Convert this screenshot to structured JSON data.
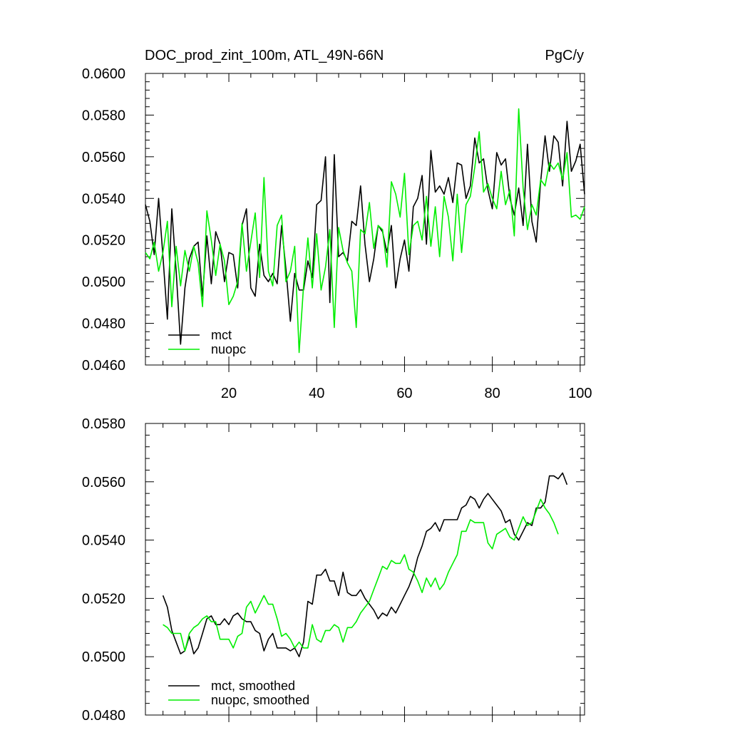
{
  "chart_data": [
    {
      "type": "line",
      "title": "DOC_prod_zint_100m, ATL_49N-66N",
      "units": "PgC/y",
      "ylim": [
        0.046,
        0.06
      ],
      "xlim": [
        1,
        101
      ],
      "yticks": [
        "0.0460",
        "0.0480",
        "0.0500",
        "0.0520",
        "0.0540",
        "0.0560",
        "0.0580",
        "0.0600"
      ],
      "ytick_values": [
        0.046,
        0.048,
        0.05,
        0.052,
        0.054,
        0.056,
        0.058,
        0.06
      ],
      "xticks": [
        "20",
        "40",
        "60",
        "80",
        "100"
      ],
      "xtick_values": [
        20,
        40,
        60,
        80,
        100
      ],
      "legend": "bottom-left",
      "series": [
        {
          "name": "mct",
          "color": "#000000",
          "values": [
            0.0537,
            0.0529,
            0.0513,
            0.054,
            0.0512,
            0.0482,
            0.0535,
            0.0505,
            0.047,
            0.0497,
            0.0511,
            0.0517,
            0.0519,
            0.0493,
            0.0522,
            0.0499,
            0.0524,
            0.0518,
            0.05,
            0.0514,
            0.0513,
            0.0497,
            0.0527,
            0.0535,
            0.0497,
            0.0493,
            0.0518,
            0.0503,
            0.05,
            0.0504,
            0.0499,
            0.0527,
            0.0506,
            0.0481,
            0.0504,
            0.0496,
            0.0496,
            0.051,
            0.0502,
            0.0537,
            0.0539,
            0.056,
            0.049,
            0.0561,
            0.0512,
            0.0514,
            0.051,
            0.0529,
            0.0527,
            0.0546,
            0.0518,
            0.05,
            0.0511,
            0.0527,
            0.0524,
            0.0514,
            0.0527,
            0.0497,
            0.0511,
            0.052,
            0.0505,
            0.0536,
            0.054,
            0.0551,
            0.0518,
            0.0563,
            0.0543,
            0.0546,
            0.0542,
            0.055,
            0.0538,
            0.0557,
            0.0556,
            0.054,
            0.0546,
            0.0569,
            0.0557,
            0.0559,
            0.0544,
            0.0535,
            0.0562,
            0.0556,
            0.0559,
            0.054,
            0.0532,
            0.0545,
            0.0527,
            0.0566,
            0.0529,
            0.0519,
            0.0548,
            0.057,
            0.0553,
            0.057,
            0.0567,
            0.0546,
            0.0577,
            0.0553,
            0.0558,
            0.0566,
            0.0542
          ]
        },
        {
          "name": "nuopc",
          "color": "#00ee00",
          "values": [
            0.0514,
            0.0511,
            0.0519,
            0.0505,
            0.0514,
            0.0529,
            0.0488,
            0.0517,
            0.0498,
            0.0515,
            0.0505,
            0.0517,
            0.0509,
            0.0488,
            0.0534,
            0.052,
            0.0503,
            0.0518,
            0.051,
            0.0489,
            0.0493,
            0.05,
            0.0528,
            0.0505,
            0.0519,
            0.0533,
            0.0502,
            0.055,
            0.0505,
            0.0498,
            0.0527,
            0.0532,
            0.05,
            0.0505,
            0.0517,
            0.0466,
            0.0498,
            0.0521,
            0.0497,
            0.0523,
            0.0496,
            0.0507,
            0.0525,
            0.0478,
            0.0526,
            0.0515,
            0.0509,
            0.0505,
            0.0478,
            0.0525,
            0.0523,
            0.0538,
            0.0516,
            0.0527,
            0.0525,
            0.0507,
            0.0548,
            0.0542,
            0.0531,
            0.0552,
            0.0513,
            0.0527,
            0.0529,
            0.052,
            0.0541,
            0.0517,
            0.0536,
            0.0512,
            0.0541,
            0.0531,
            0.051,
            0.0542,
            0.0514,
            0.0537,
            0.0541,
            0.0555,
            0.0572,
            0.0543,
            0.0547,
            0.054,
            0.0535,
            0.0553,
            0.0537,
            0.0544,
            0.0522,
            0.0583,
            0.0545,
            0.0525,
            0.0537,
            0.0532,
            0.0549,
            0.0546,
            0.0557,
            0.0554,
            0.0557,
            0.0549,
            0.0562,
            0.0531,
            0.0532,
            0.053,
            0.0536
          ]
        }
      ]
    },
    {
      "type": "line",
      "ylim": [
        0.048,
        0.058
      ],
      "xlim": [
        1,
        101
      ],
      "yticks": [
        "0.0480",
        "0.0500",
        "0.0520",
        "0.0540",
        "0.0560",
        "0.0580"
      ],
      "ytick_values": [
        0.048,
        0.05,
        0.052,
        0.054,
        0.056,
        0.058
      ],
      "xtick_values": [
        20,
        40,
        60,
        80,
        100
      ],
      "legend": "bottom-left",
      "series": [
        {
          "name": "mct, smoothed",
          "color": "#000000",
          "x_start": 5,
          "values": [
            0.0521,
            0.0517,
            0.0509,
            0.0505,
            0.0501,
            0.0502,
            0.0507,
            0.0501,
            0.0503,
            0.0508,
            0.0513,
            0.0514,
            0.0511,
            0.0511,
            0.0513,
            0.0511,
            0.0514,
            0.0515,
            0.0513,
            0.0512,
            0.0512,
            0.0509,
            0.0508,
            0.0502,
            0.0506,
            0.0508,
            0.0503,
            0.0503,
            0.0503,
            0.0502,
            0.0503,
            0.05,
            0.0505,
            0.0519,
            0.0518,
            0.0528,
            0.0528,
            0.053,
            0.0526,
            0.0526,
            0.0521,
            0.0529,
            0.0522,
            0.0521,
            0.0521,
            0.0523,
            0.052,
            0.0518,
            0.0516,
            0.0513,
            0.0515,
            0.0514,
            0.0517,
            0.0515,
            0.0518,
            0.0521,
            0.0524,
            0.0528,
            0.0534,
            0.0538,
            0.0543,
            0.0544,
            0.0546,
            0.0543,
            0.0547,
            0.0547,
            0.0547,
            0.0547,
            0.0551,
            0.0552,
            0.0555,
            0.0554,
            0.0551,
            0.0554,
            0.0556,
            0.0554,
            0.0552,
            0.055,
            0.0546,
            0.0547,
            0.0542,
            0.054,
            0.0543,
            0.0546,
            0.0545,
            0.0551,
            0.0551,
            0.0553,
            0.0562,
            0.0562,
            0.0561,
            0.0563,
            0.0559
          ]
        },
        {
          "name": "nuopc, smoothed",
          "color": "#00ee00",
          "x_start": 5,
          "values": [
            0.0511,
            0.051,
            0.0508,
            0.0508,
            0.0508,
            0.0502,
            0.0508,
            0.051,
            0.0511,
            0.0513,
            0.0514,
            0.0512,
            0.0512,
            0.0506,
            0.0506,
            0.0506,
            0.0503,
            0.0507,
            0.0508,
            0.0517,
            0.0519,
            0.0515,
            0.0518,
            0.0521,
            0.0518,
            0.0518,
            0.0513,
            0.0507,
            0.0508,
            0.0506,
            0.0503,
            0.0505,
            0.0503,
            0.0503,
            0.0511,
            0.0506,
            0.0505,
            0.0509,
            0.0509,
            0.0511,
            0.051,
            0.0505,
            0.051,
            0.051,
            0.0512,
            0.0515,
            0.0517,
            0.0519,
            0.0523,
            0.0527,
            0.0531,
            0.053,
            0.0533,
            0.0532,
            0.0532,
            0.0535,
            0.053,
            0.0529,
            0.0526,
            0.0522,
            0.0527,
            0.0524,
            0.0527,
            0.0523,
            0.0525,
            0.0529,
            0.0532,
            0.0535,
            0.0543,
            0.0543,
            0.0547,
            0.0546,
            0.0546,
            0.0546,
            0.0539,
            0.0537,
            0.0542,
            0.0543,
            0.0544,
            0.0541,
            0.054,
            0.0544,
            0.0548,
            0.0545,
            0.0546,
            0.055,
            0.0554,
            0.0551,
            0.0549,
            0.0546,
            0.0542
          ]
        }
      ]
    }
  ]
}
